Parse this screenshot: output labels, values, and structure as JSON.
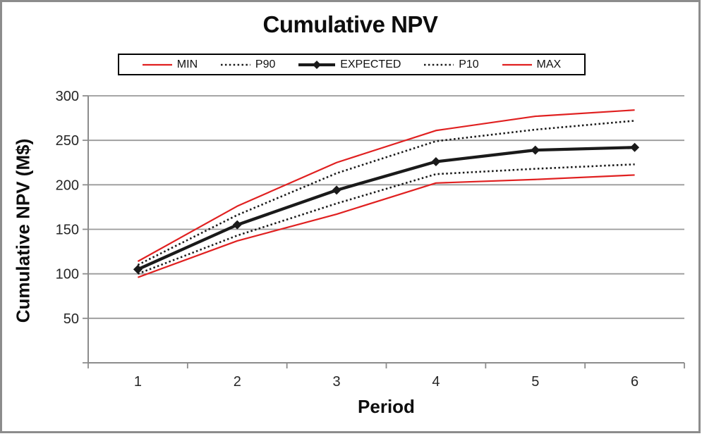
{
  "window": {
    "frame_border_color": "#8c8c8c",
    "background": "#ffffff"
  },
  "chart_data": {
    "type": "line",
    "title": "Cumulative NPV",
    "xlabel": "Period",
    "ylabel": "Cumulative NPV (M$)",
    "x": [
      1,
      2,
      3,
      4,
      5,
      6
    ],
    "y_ticks": [
      50,
      100,
      150,
      200,
      250,
      300
    ],
    "ylim": [
      0,
      300
    ],
    "grid": true,
    "legend_position": "top",
    "legend_border_color": "#000000",
    "series": [
      {
        "name": "MIN",
        "values": [
          96,
          137,
          167,
          202,
          206,
          211
        ],
        "color": "#e02020",
        "style": "solid",
        "width": 2.2,
        "marker": "none"
      },
      {
        "name": "P90",
        "values": [
          110,
          166,
          213,
          249,
          262,
          272
        ],
        "color": "#1a1a1a",
        "style": "dotted",
        "width": 2.6,
        "marker": "none"
      },
      {
        "name": "EXPECTED",
        "values": [
          105,
          155,
          194,
          226,
          239,
          242
        ],
        "color": "#1a1a1a",
        "style": "solid",
        "width": 4.3,
        "marker": "diamond"
      },
      {
        "name": "P10",
        "values": [
          100,
          143,
          179,
          212,
          218,
          223
        ],
        "color": "#1a1a1a",
        "style": "dotted",
        "width": 2.6,
        "marker": "none"
      },
      {
        "name": "MAX",
        "values": [
          114,
          176,
          225,
          261,
          277,
          284
        ],
        "color": "#e02020",
        "style": "solid",
        "width": 2.2,
        "marker": "none"
      }
    ],
    "colors": {
      "gridline": "#9a9a9a",
      "axis": "#8c8c8c",
      "tick_label": "#262626",
      "text": "#0d0d0d"
    }
  }
}
